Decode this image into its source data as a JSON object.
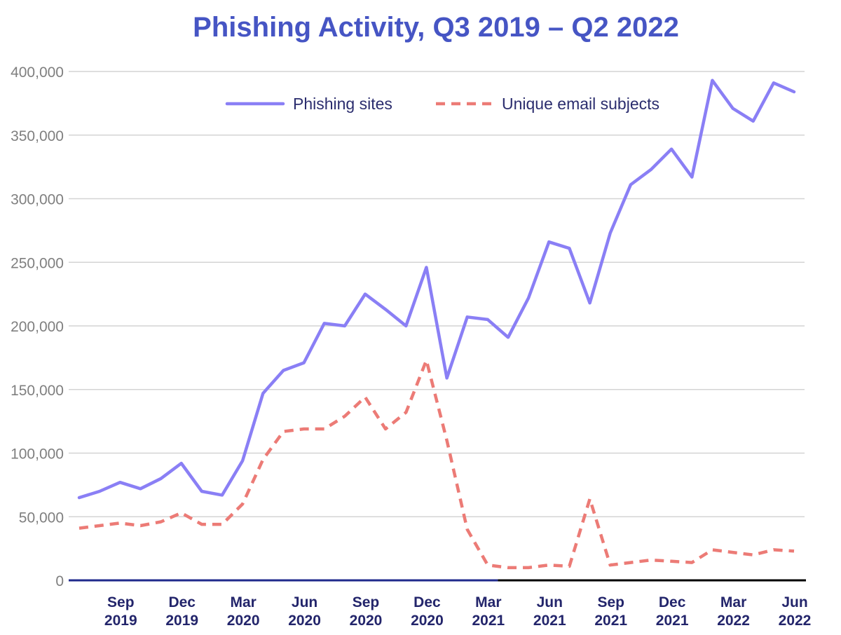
{
  "chart_data": {
    "type": "line",
    "title": "Phishing Activity, Q3 2019 – Q2 2022",
    "xlabel": "",
    "ylabel": "",
    "ylim": [
      0,
      400000
    ],
    "y_ticks": [
      0,
      50000,
      100000,
      150000,
      200000,
      250000,
      300000,
      350000,
      400000
    ],
    "y_tick_labels": [
      "0",
      "50,000",
      "100,000",
      "150,000",
      "200,000",
      "250,000",
      "300,000",
      "350,000",
      "400,000"
    ],
    "grid": true,
    "legend_position": "top",
    "x": [
      "Jul 2019",
      "Aug 2019",
      "Sep 2019",
      "Oct 2019",
      "Nov 2019",
      "Dec 2019",
      "Jan 2020",
      "Feb 2020",
      "Mar 2020",
      "Apr 2020",
      "May 2020",
      "Jun 2020",
      "Jul 2020",
      "Aug 2020",
      "Sep 2020",
      "Oct 2020",
      "Nov 2020",
      "Dec 2020",
      "Jan 2021",
      "Feb 2021",
      "Mar 2021",
      "Apr 2021",
      "May 2021",
      "Jun 2021",
      "Jul 2021",
      "Aug 2021",
      "Sep 2021",
      "Oct 2021",
      "Nov 2021",
      "Dec 2021",
      "Jan 2022",
      "Feb 2022",
      "Mar 2022",
      "Apr 2022",
      "May 2022",
      "Jun 2022"
    ],
    "x_tick_labels": [
      {
        "month": "Sep",
        "year": "2019",
        "index": 2
      },
      {
        "month": "Dec",
        "year": "2019",
        "index": 5
      },
      {
        "month": "Mar",
        "year": "2020",
        "index": 8
      },
      {
        "month": "Jun",
        "year": "2020",
        "index": 11
      },
      {
        "month": "Sep",
        "year": "2020",
        "index": 14
      },
      {
        "month": "Dec",
        "year": "2020",
        "index": 17
      },
      {
        "month": "Mar",
        "year": "2021",
        "index": 20
      },
      {
        "month": "Jun",
        "year": "2021",
        "index": 23
      },
      {
        "month": "Sep",
        "year": "2021",
        "index": 26
      },
      {
        "month": "Dec",
        "year": "2021",
        "index": 29
      },
      {
        "month": "Mar",
        "year": "2022",
        "index": 32
      },
      {
        "month": "Jun",
        "year": "2022",
        "index": 35
      }
    ],
    "series": [
      {
        "name": "Phishing sites",
        "color": "#8a7ff5",
        "style": "solid",
        "values": [
          65000,
          70000,
          77000,
          72000,
          80000,
          92000,
          70000,
          67000,
          94000,
          147000,
          165000,
          171000,
          202000,
          200000,
          225000,
          213000,
          200000,
          246000,
          159000,
          207000,
          205000,
          191000,
          222000,
          266000,
          261000,
          218000,
          273000,
          311000,
          323000,
          339000,
          317000,
          393000,
          371000,
          361000,
          391000,
          384000
        ]
      },
      {
        "name": "Unique email subjects",
        "color": "#ec7b76",
        "style": "dashed",
        "values": [
          41000,
          43000,
          45000,
          43000,
          46000,
          53000,
          44000,
          44000,
          60000,
          95000,
          117000,
          119000,
          119000,
          129000,
          144000,
          119000,
          132000,
          173000,
          110000,
          40000,
          12000,
          10000,
          10000,
          12000,
          11000,
          64000,
          12000,
          14000,
          16000,
          15000,
          14000,
          24000,
          22000,
          20000,
          24000,
          23000
        ]
      }
    ]
  },
  "colors": {
    "title": "#4655c4",
    "axis_line_left": "#1f2a8c",
    "axis_line_right": "#000000",
    "grid": "#d4d4d4",
    "tick_text": "#7f7f7f",
    "x_tick_text": "#23256b",
    "legend_text": "#2b2d6e"
  }
}
